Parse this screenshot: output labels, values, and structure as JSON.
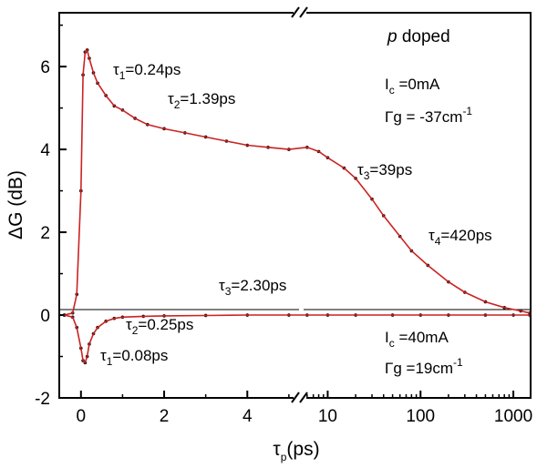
{
  "chart_data": {
    "type": "line",
    "title": "p doped",
    "xlabel": {
      "main": "τ",
      "sub": "p",
      "tail": "(ps)"
    },
    "ylabel": "ΔG (dB)",
    "ylim": [
      -2,
      7.3
    ],
    "linear_segment": {
      "xlim": [
        -0.5,
        5.2
      ],
      "ticks": [
        0,
        2,
        4
      ],
      "tick_labels": [
        "0",
        "2",
        "4"
      ]
    },
    "log_segment": {
      "xlim": [
        5.5,
        1500
      ],
      "ticks": [
        10,
        100,
        1000
      ],
      "tick_labels": [
        "10",
        "100",
        "1000"
      ]
    },
    "y_ticks": [
      -2,
      0,
      2,
      4,
      6
    ],
    "y_tick_labels": [
      "-2",
      "0",
      "2",
      "4",
      "6"
    ],
    "data_color": "#111111",
    "fit_color": "#cc2222",
    "series": [
      {
        "style": "points",
        "x": [
          -0.4,
          -0.2,
          -0.1,
          0.0,
          0.05,
          0.1,
          0.15,
          0.2,
          0.3,
          0.4,
          0.6,
          0.8,
          1.0,
          1.3,
          1.6,
          2.0,
          2.5,
          3.0,
          3.5,
          4.0,
          4.5,
          5.0,
          6.0,
          8.0,
          10,
          15,
          20,
          30,
          40,
          60,
          80,
          120,
          200,
          300,
          500,
          800,
          1200,
          1500
        ],
        "y": [
          0.0,
          0.05,
          0.5,
          3.0,
          5.8,
          6.35,
          6.4,
          6.2,
          5.85,
          5.6,
          5.3,
          5.05,
          4.95,
          4.75,
          4.6,
          4.5,
          4.4,
          4.3,
          4.2,
          4.1,
          4.05,
          4.0,
          4.05,
          3.95,
          3.8,
          3.55,
          3.3,
          2.8,
          2.4,
          1.9,
          1.55,
          1.2,
          0.8,
          0.55,
          0.32,
          0.18,
          0.1,
          0.05
        ]
      },
      {
        "style": "line",
        "x": [
          -0.4,
          -0.2,
          -0.1,
          0.0,
          0.05,
          0.1,
          0.15,
          0.2,
          0.3,
          0.4,
          0.6,
          0.8,
          1.0,
          1.3,
          1.6,
          2.0,
          2.5,
          3.0,
          3.5,
          4.0,
          4.5,
          5.0,
          6.0,
          8.0,
          10,
          15,
          20,
          30,
          40,
          60,
          80,
          120,
          200,
          300,
          500,
          800,
          1200,
          1500
        ],
        "y": [
          0.0,
          0.05,
          0.5,
          3.0,
          5.8,
          6.35,
          6.4,
          6.2,
          5.85,
          5.6,
          5.3,
          5.05,
          4.95,
          4.75,
          4.6,
          4.5,
          4.4,
          4.3,
          4.2,
          4.1,
          4.05,
          4.0,
          4.05,
          3.95,
          3.8,
          3.55,
          3.3,
          2.8,
          2.4,
          1.9,
          1.55,
          1.2,
          0.8,
          0.55,
          0.32,
          0.18,
          0.1,
          0.05
        ]
      },
      {
        "style": "points",
        "x": [
          -0.4,
          -0.2,
          -0.1,
          0.0,
          0.05,
          0.1,
          0.15,
          0.2,
          0.3,
          0.4,
          0.6,
          0.8,
          1.0,
          1.5,
          2.0,
          3.0,
          4.0,
          5.0,
          6.0,
          10,
          20,
          50,
          100,
          200,
          500,
          1000,
          1500
        ],
        "y": [
          0.0,
          -0.05,
          -0.3,
          -0.8,
          -1.1,
          -1.15,
          -1.0,
          -0.7,
          -0.45,
          -0.3,
          -0.15,
          -0.08,
          -0.05,
          -0.03,
          -0.02,
          -0.01,
          0.0,
          0.0,
          0.0,
          0.0,
          0.0,
          0.0,
          0.0,
          0.0,
          0.0,
          0.0,
          0.0
        ]
      },
      {
        "style": "line",
        "x": [
          -0.4,
          -0.2,
          -0.1,
          0.0,
          0.05,
          0.1,
          0.15,
          0.2,
          0.3,
          0.4,
          0.6,
          0.8,
          1.0,
          1.5,
          2.0,
          3.0,
          4.0,
          5.0,
          6.0,
          10,
          20,
          50,
          100,
          200,
          500,
          1000,
          1500
        ],
        "y": [
          0.0,
          -0.05,
          -0.3,
          -0.8,
          -1.1,
          -1.15,
          -1.0,
          -0.7,
          -0.45,
          -0.3,
          -0.15,
          -0.08,
          -0.05,
          -0.03,
          -0.02,
          -0.01,
          0.0,
          0.0,
          0.0,
          0.0,
          0.0,
          0.0,
          0.0,
          0.0,
          0.0,
          0.0,
          0.0
        ]
      }
    ],
    "annotations": {
      "title": {
        "italic": "p",
        "rest": " doped"
      },
      "ic_top": {
        "sym": "I",
        "sub": "c",
        "val": " =0mA"
      },
      "gamma_top": "Γg = -37cm",
      "gamma_top_sup": "-1",
      "tau1_top": {
        "sym": "τ",
        "sub": "1",
        "val": "=0.24ps"
      },
      "tau2_top": {
        "sym": "τ",
        "sub": "2",
        "val": "=1.39ps"
      },
      "tau3_top": {
        "sym": "τ",
        "sub": "3",
        "val": "=39ps"
      },
      "tau4_top": {
        "sym": "τ",
        "sub": "4",
        "val": "=420ps"
      },
      "tau3_bot": {
        "sym": "τ",
        "sub": "3",
        "val": "=2.30ps"
      },
      "tau2_bot": {
        "sym": "τ",
        "sub": "2",
        "val": "=0.25ps"
      },
      "tau1_bot": {
        "sym": "τ",
        "sub": "1",
        "val": "=0.08ps"
      },
      "ic_bot": {
        "sym": "I",
        "sub": "c",
        "val": " =40mA"
      },
      "gamma_bot": "Γg =19cm",
      "gamma_bot_sup": "-1"
    }
  }
}
